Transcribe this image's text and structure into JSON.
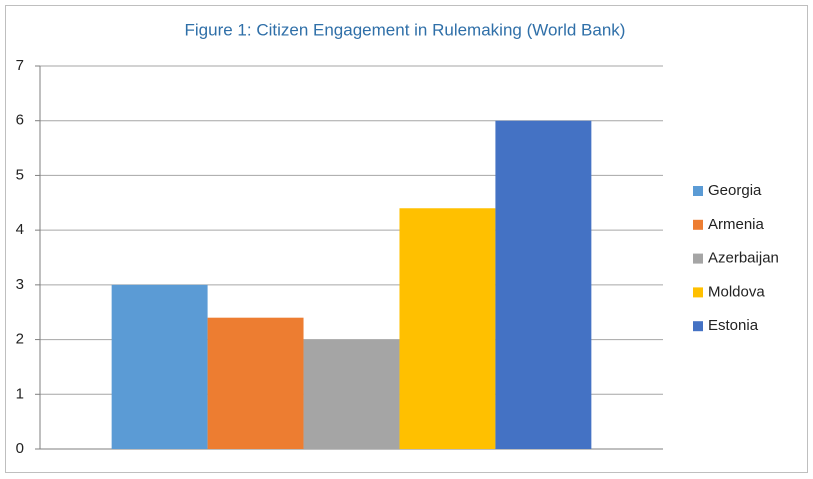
{
  "chart_data": {
    "type": "bar",
    "title": "Figure 1: Citizen Engagement in Rulemaking (World Bank)",
    "categories": [
      null
    ],
    "series": [
      {
        "name": "Georgia",
        "color": "#5b9bd5",
        "values": [
          3
        ]
      },
      {
        "name": "Armenia",
        "color": "#ed7d31",
        "values": [
          2.4
        ]
      },
      {
        "name": "Azerbaijan",
        "color": "#a5a5a5",
        "values": [
          2
        ]
      },
      {
        "name": "Moldova",
        "color": "#ffc000",
        "values": [
          4.4
        ]
      },
      {
        "name": "Estonia",
        "color": "#4472c4",
        "values": [
          6
        ]
      }
    ],
    "ylim": [
      0,
      7
    ],
    "yticks": [
      0,
      1,
      2,
      3,
      4,
      5,
      6,
      7
    ],
    "grid": true,
    "legend": "right"
  }
}
